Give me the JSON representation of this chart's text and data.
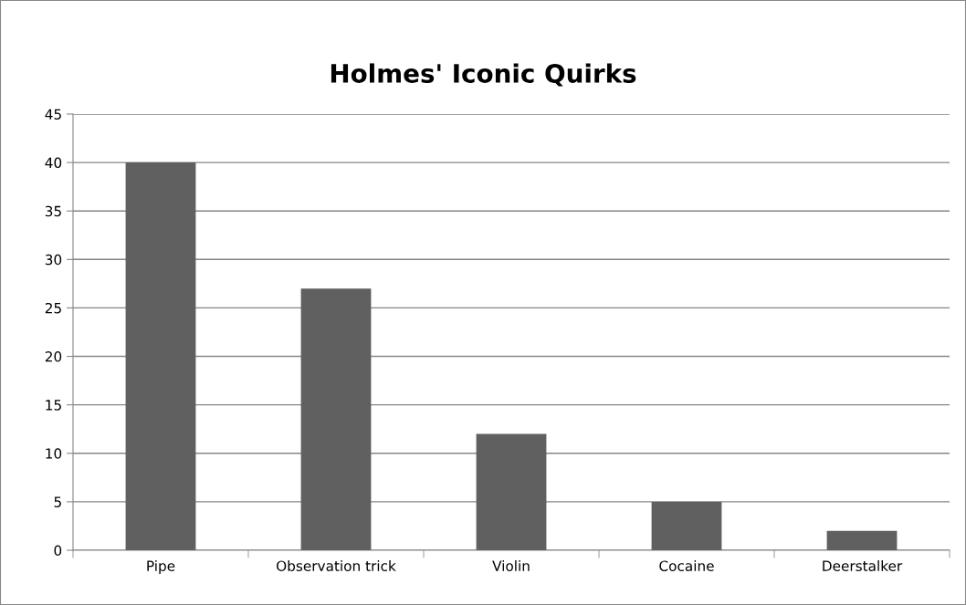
{
  "chart_data": {
    "type": "bar",
    "title": "Holmes' Iconic Quirks",
    "categories": [
      "Pipe",
      "Observation trick",
      "Violin",
      "Cocaine",
      "Deerstalker"
    ],
    "values": [
      40,
      27,
      12,
      5,
      2
    ],
    "color": "#606060",
    "ylim": [
      0,
      45
    ],
    "yticks": [
      0,
      5,
      10,
      15,
      20,
      25,
      30,
      35,
      40,
      45
    ],
    "grid": "y",
    "legend": false
  }
}
